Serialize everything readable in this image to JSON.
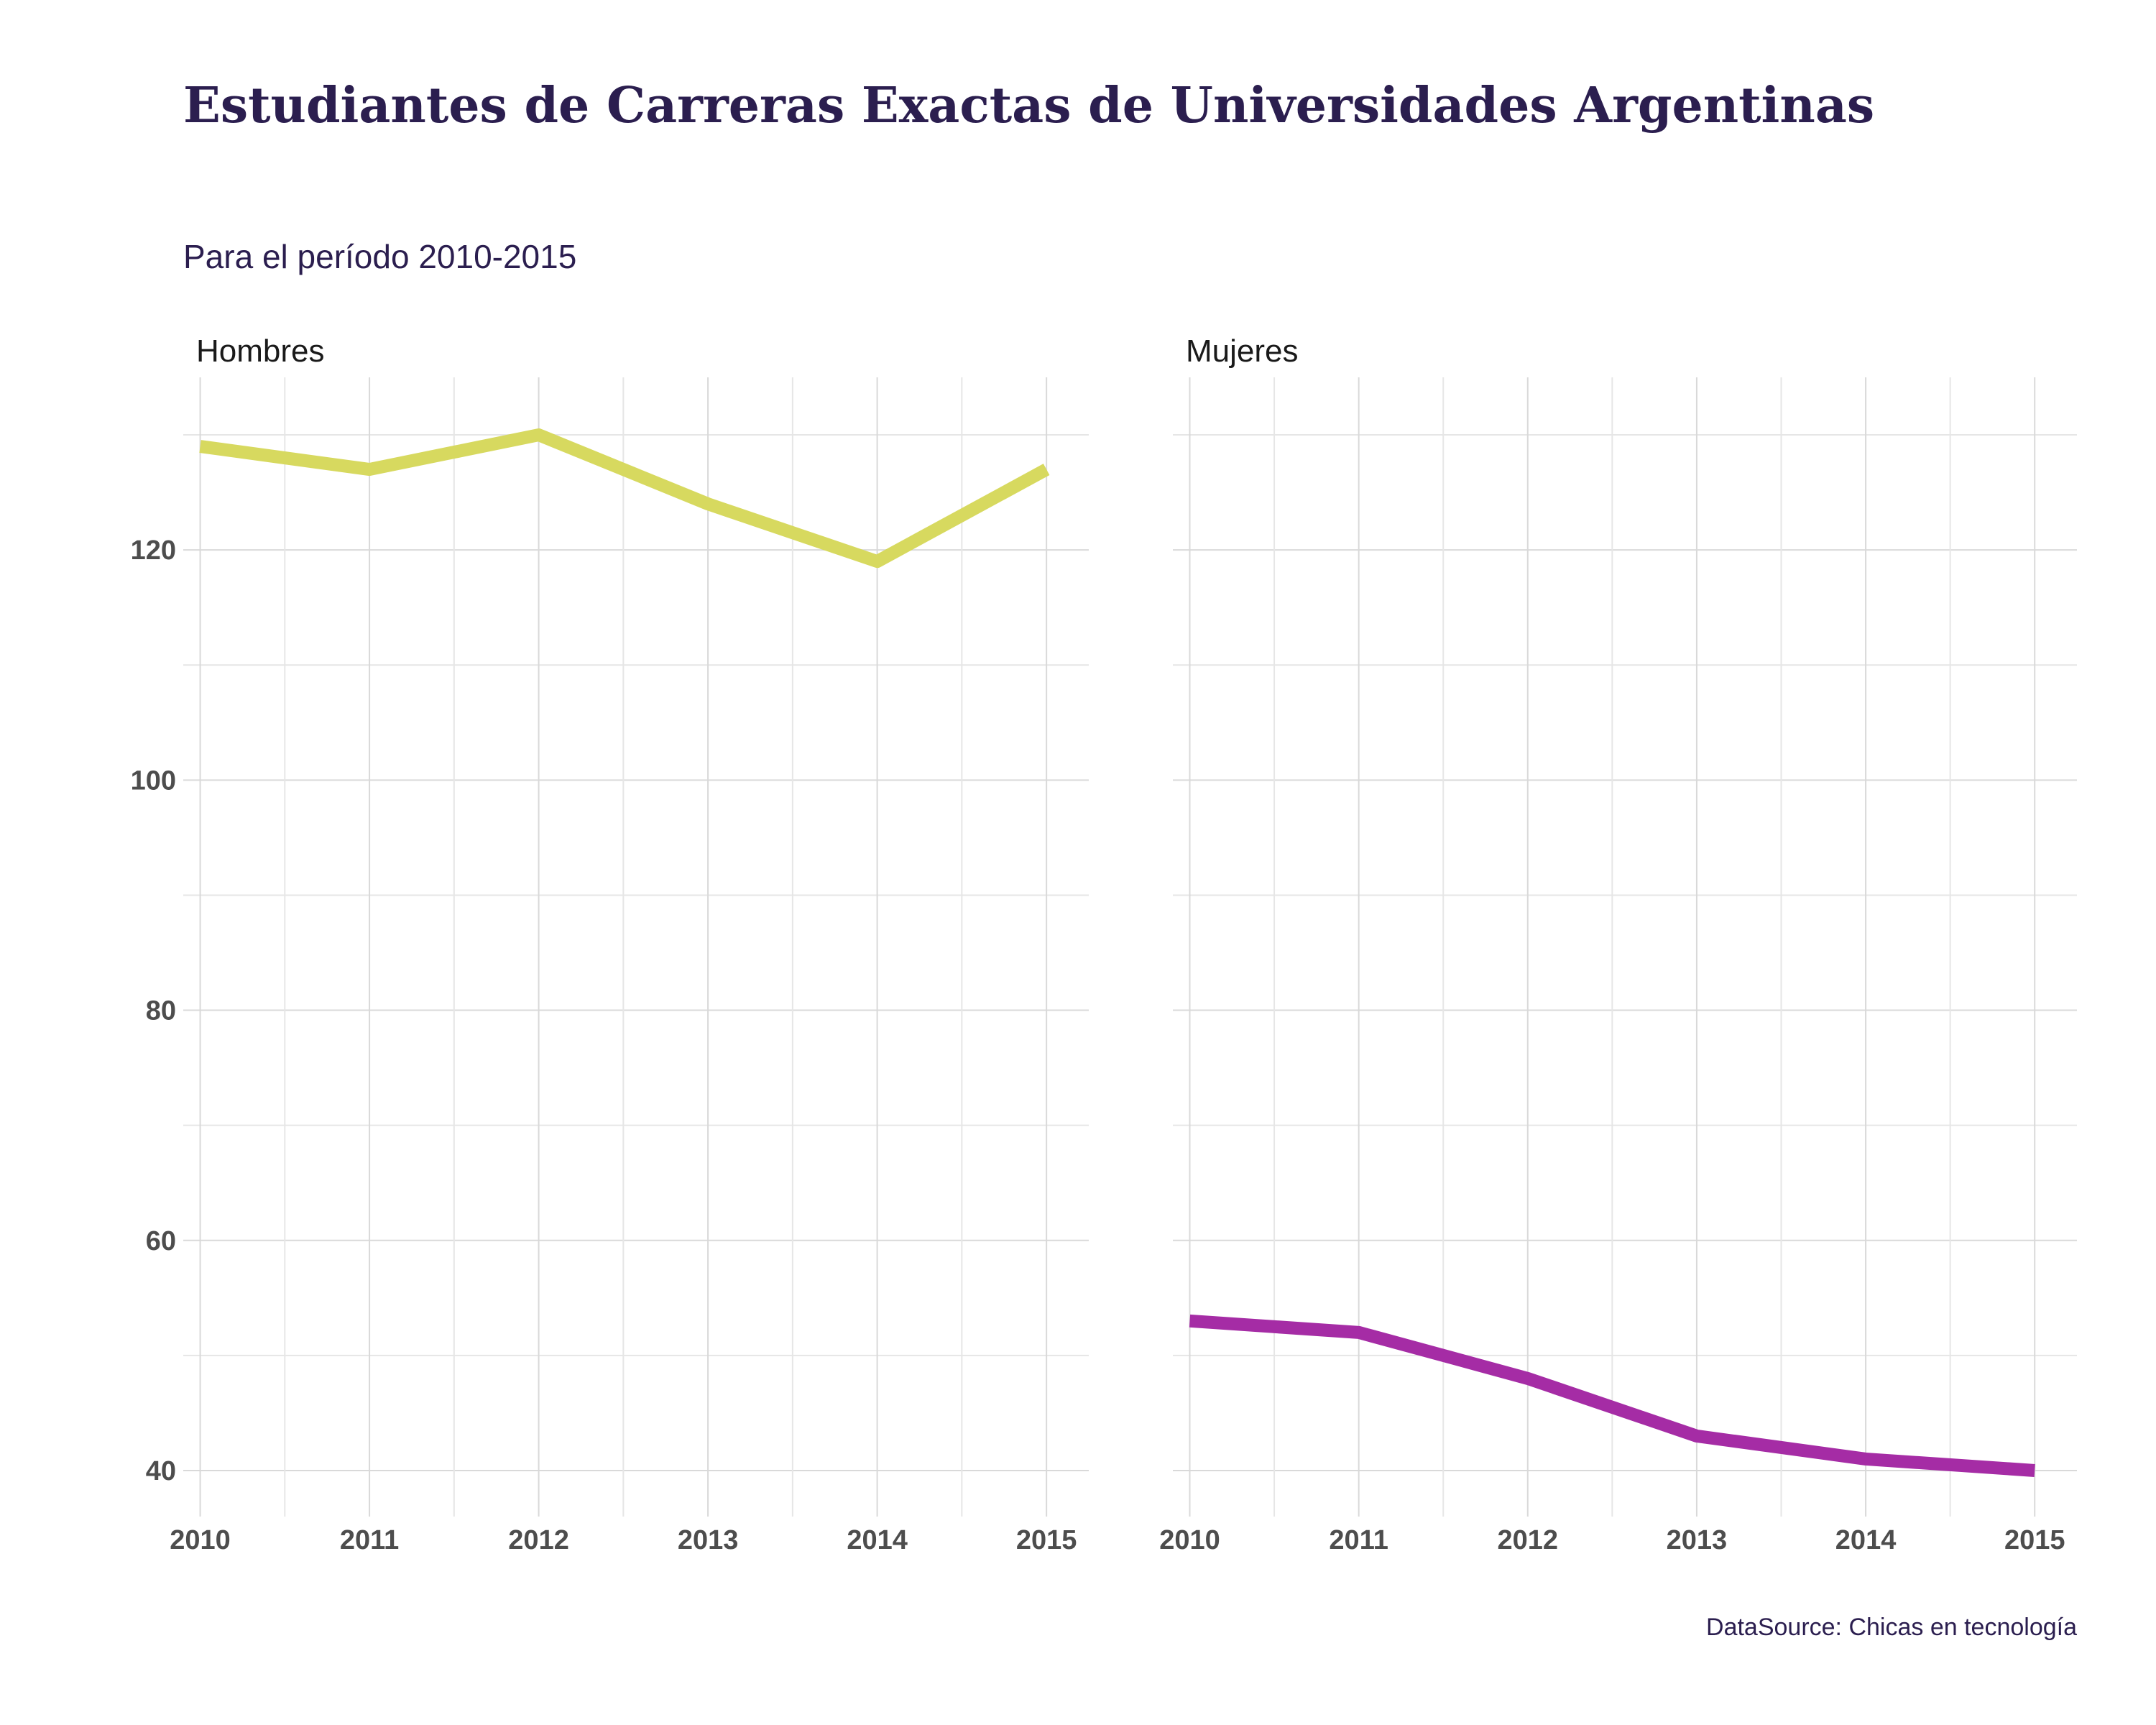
{
  "title": "Estudiantes de Carreras Exactas de Universidades Argentinas",
  "subtitle": "Para el período 2010-2015",
  "caption": "DataSource: Chicas en tecnología",
  "chart_data": {
    "type": "line",
    "facets": [
      "Hombres",
      "Mujeres"
    ],
    "x": [
      2010,
      2011,
      2012,
      2013,
      2014,
      2015
    ],
    "xlim": [
      2009.9,
      2015.25
    ],
    "ylim": [
      36,
      135
    ],
    "y_ticks": [
      40,
      60,
      80,
      100,
      120
    ],
    "y_minor_ticks": [
      50,
      70,
      90,
      110,
      130
    ],
    "grid": true,
    "legend": "none",
    "series": [
      {
        "facet": "Hombres",
        "color": "#d7d95f",
        "values": [
          129,
          127,
          130,
          124,
          119,
          127
        ]
      },
      {
        "facet": "Mujeres",
        "color": "#a52ca5",
        "values": [
          53,
          52,
          48,
          43,
          41,
          40
        ]
      }
    ]
  }
}
